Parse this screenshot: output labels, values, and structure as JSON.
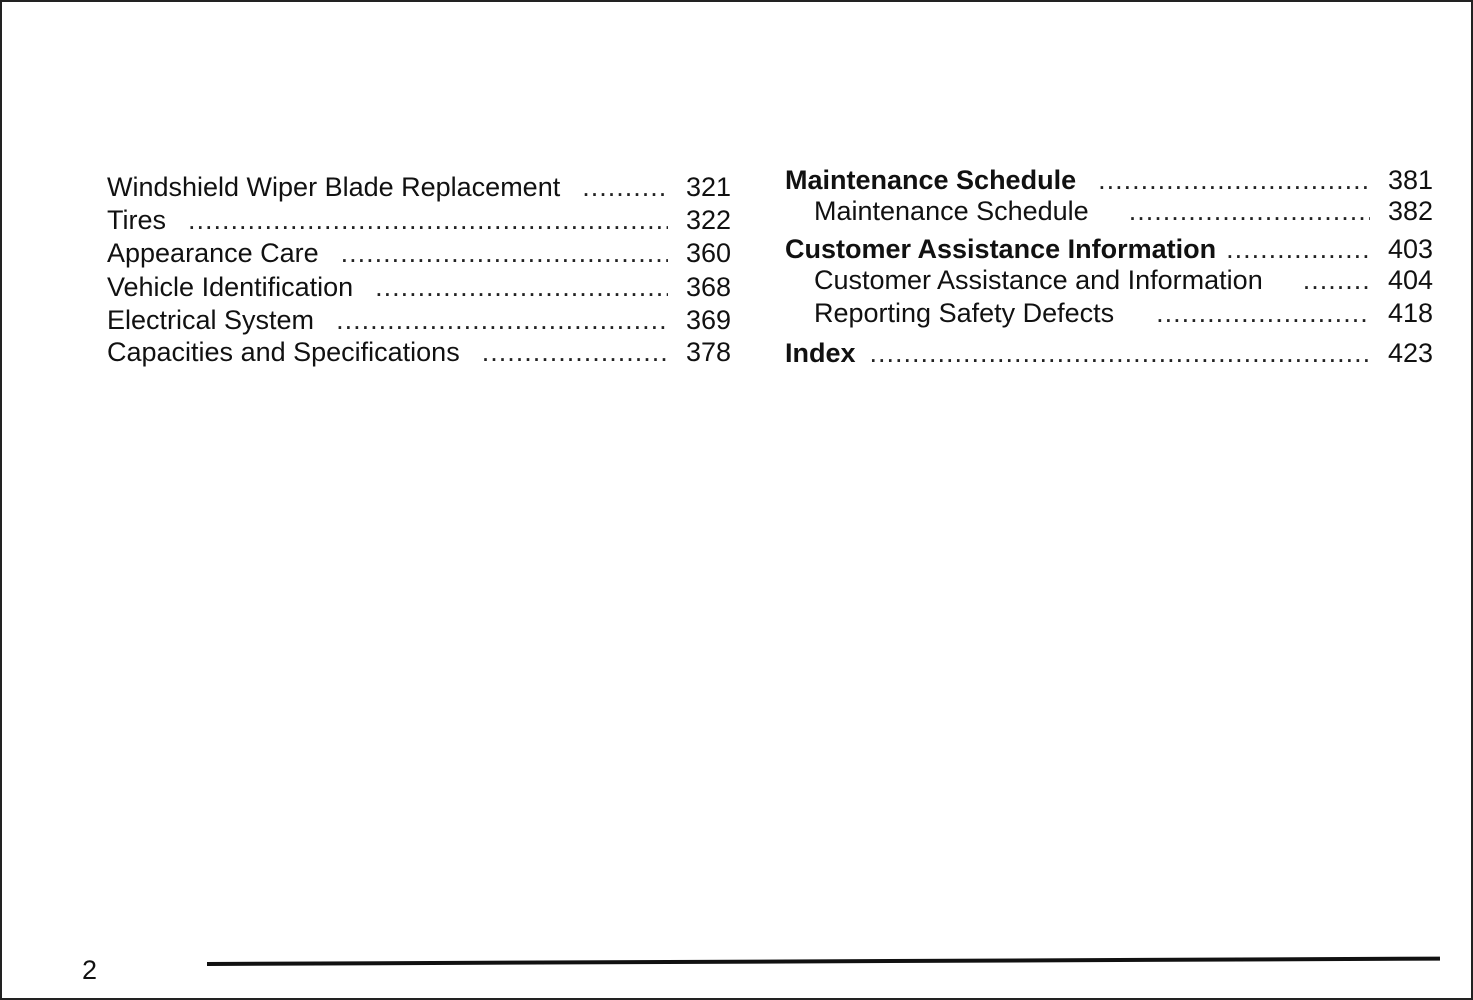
{
  "left_entries": [
    {
      "title": "Windshield Wiper Blade Replacement",
      "page": "321"
    },
    {
      "title": "Tires",
      "page": "322"
    },
    {
      "title": "Appearance Care",
      "page": "360"
    },
    {
      "title": "Vehicle Identification",
      "page": "368"
    },
    {
      "title": "Electrical System",
      "page": "369"
    },
    {
      "title": "Capacities and Specifications",
      "page": "378"
    }
  ],
  "right_entries": [
    {
      "title": "Maintenance Schedule",
      "page": "381",
      "bold": true
    },
    {
      "title": "Maintenance Schedule",
      "page": "382",
      "bold": false
    },
    {
      "title": "Customer Assistance Information",
      "page": "403",
      "bold": true
    },
    {
      "title": "Customer Assistance and Information",
      "page": "404",
      "bold": false
    },
    {
      "title": "Reporting Safety Defects",
      "page": "418",
      "bold": false
    },
    {
      "title": "Index",
      "page": "423",
      "bold": true
    }
  ],
  "footer": {
    "page_number": "2"
  }
}
